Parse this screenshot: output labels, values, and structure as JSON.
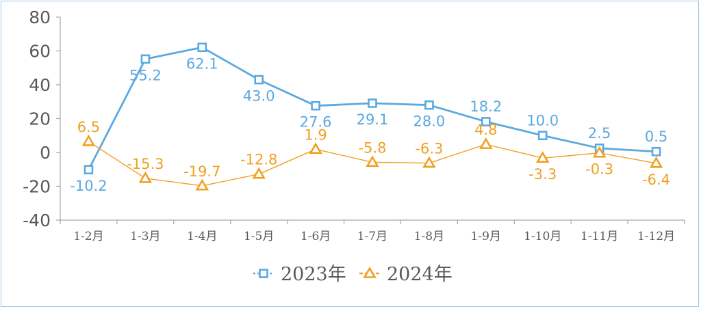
{
  "chart_data": {
    "type": "line",
    "title": "",
    "xlabel": "",
    "ylabel": "",
    "categories": [
      "1-2月",
      "1-3月",
      "1-4月",
      "1-5月",
      "1-6月",
      "1-7月",
      "1-8月",
      "1-9月",
      "1-10月",
      "1-11月",
      "1-12月"
    ],
    "ylim": [
      -40,
      80
    ],
    "yticks": [
      80,
      60,
      40,
      20,
      0,
      -20,
      -40
    ],
    "ytick_labels": [
      "80",
      "60",
      "40",
      "20",
      "0",
      "-20",
      "-40"
    ],
    "grid": false,
    "legend_position": "bottom",
    "series": [
      {
        "name": "2023年",
        "color": "#5aa9e0",
        "marker": "square",
        "values": [
          -10.2,
          55.2,
          62.1,
          43.0,
          27.6,
          29.1,
          28.0,
          18.2,
          10.0,
          2.5,
          0.5
        ],
        "labels": [
          "-10.2",
          "55.2",
          "62.1",
          "43.0",
          "27.6",
          "29.1",
          "28.0",
          "18.2",
          "10.0",
          "2.5",
          "0.5"
        ]
      },
      {
        "name": "2024年",
        "color": "#f0a020",
        "marker": "triangle",
        "values": [
          6.5,
          -15.3,
          -19.7,
          -12.8,
          1.9,
          -5.8,
          -6.3,
          4.8,
          -3.3,
          -0.3,
          -6.4
        ],
        "labels": [
          "6.5",
          "-15.3",
          "-19.7",
          "-12.8",
          "1.9",
          "-5.8",
          "-6.3",
          "4.8",
          "-3.3",
          "-0.3",
          "-6.4"
        ]
      }
    ]
  }
}
